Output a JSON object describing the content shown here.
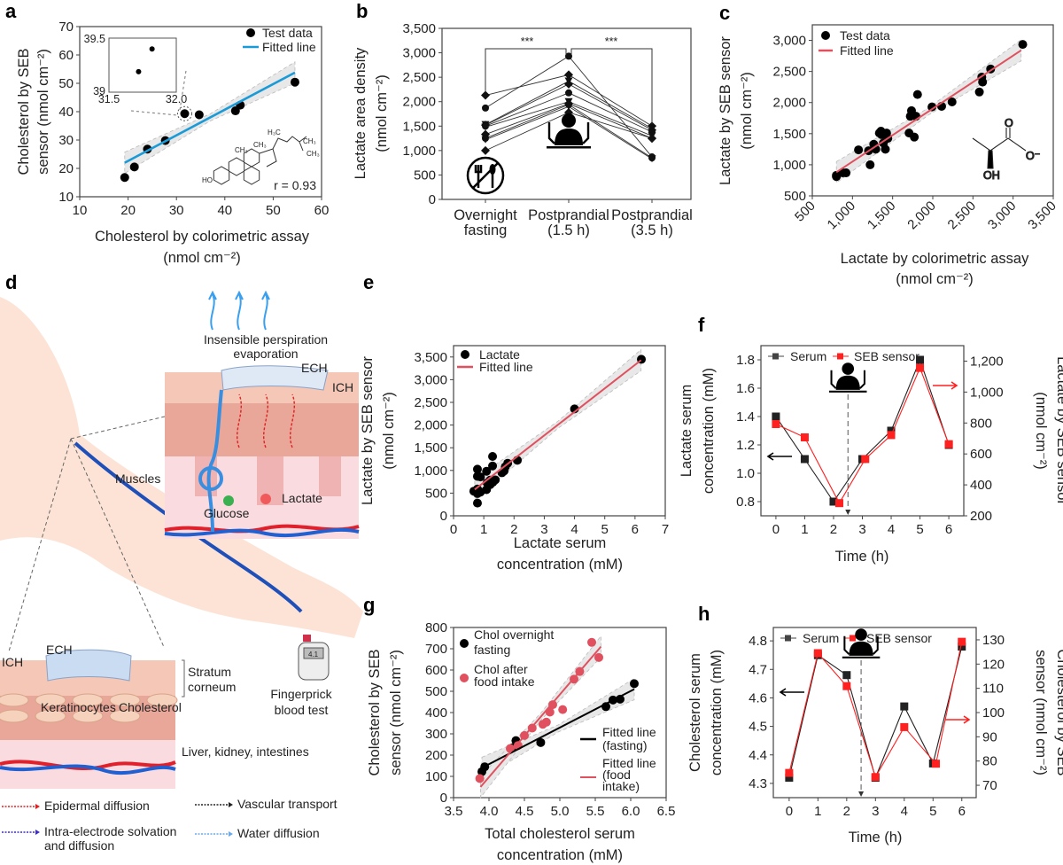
{
  "panel_letters": {
    "a": "a",
    "b": "b",
    "c": "c",
    "d": "d",
    "e": "e",
    "f": "f",
    "g": "g",
    "h": "h"
  },
  "colors": {
    "blue_fit": "#1a9ad6",
    "red_fit": "#e0505e",
    "sensor_red": "#ff2020",
    "serum_black": "#222222",
    "band": "#e6e6e6"
  },
  "chart_data": [
    {
      "panel": "a",
      "type": "scatter",
      "xlim": [
        10,
        60
      ],
      "ylim": [
        10,
        70
      ],
      "xticks": [
        10,
        20,
        30,
        40,
        50,
        60
      ],
      "xticklabels": [
        "10",
        "20",
        "30",
        "40",
        "50",
        "60"
      ],
      "yticks": [
        10,
        20,
        30,
        40,
        50,
        60,
        70
      ],
      "yticklabels": [
        "10",
        "20",
        "30",
        "40",
        "50",
        "60",
        "70"
      ],
      "xlabel": [
        "Cholesterol by colorimetric assay",
        "(nmol cm⁻²)"
      ],
      "ylabel": [
        "Cholesterol by SEB",
        "sensor (nmol cm⁻²)"
      ],
      "annotation": "r = 0.93",
      "series": [
        {
          "name": "Test data",
          "kind": "scatter",
          "color": "#000000",
          "x": [
            19.3,
            21.3,
            24.0,
            27.7,
            31.7,
            34.7,
            42.2,
            43.2,
            54.5
          ],
          "y": [
            16.8,
            20.5,
            26.8,
            29.8,
            39.3,
            38.9,
            40.3,
            42.3,
            50.4
          ]
        },
        {
          "name": "Fitted line",
          "kind": "fit",
          "color": "#1a9ad6",
          "x": [
            19.3,
            54.5
          ],
          "y": [
            22.0,
            53.8
          ]
        }
      ],
      "inset": {
        "xlim": [
          31.5,
          32.0
        ],
        "ylim": [
          39,
          39.5
        ],
        "xticklabels": [
          "31.5",
          "32.0"
        ],
        "yticklabels": [
          "39",
          "39.5"
        ],
        "x": [
          31.72,
          31.82
        ],
        "y": [
          39.19,
          39.4
        ]
      },
      "molecule": "cholesterol",
      "molecule_labels": [
        "H₃C",
        "CH₃",
        "CH₃",
        "CH₃",
        "CH₃",
        "HO"
      ]
    },
    {
      "panel": "b",
      "type": "line",
      "categories": [
        [
          "Overnight",
          "fasting"
        ],
        [
          "Postprandial",
          "(1.5 h)"
        ],
        [
          "Postprandial",
          "(3.5 h)"
        ]
      ],
      "ylim": [
        0,
        3500
      ],
      "yticks": [
        0,
        500,
        1000,
        1500,
        2000,
        2500,
        3000,
        3500
      ],
      "yticklabels": [
        "0",
        "500",
        "1,000",
        "1,500",
        "2,000",
        "2,500",
        "3,000",
        "3,500"
      ],
      "ylabel": [
        "Lactate area density",
        "(nmol cm⁻²)"
      ],
      "significance": [
        "***",
        "***"
      ],
      "subjects": [
        [
          2130,
          2550,
          1500
        ],
        [
          1870,
          2930,
          870
        ],
        [
          1530,
          2420,
          1450
        ],
        [
          1520,
          2360,
          1420
        ],
        [
          1500,
          2180,
          1380
        ],
        [
          1480,
          2000,
          1300
        ],
        [
          1330,
          1960,
          1250
        ],
        [
          1250,
          1940,
          850
        ],
        [
          1220,
          1900,
          830
        ],
        [
          1000,
          1780,
          1250
        ]
      ],
      "icons": [
        "no-food-icon",
        "person-eating-icon"
      ]
    },
    {
      "panel": "c",
      "type": "scatter",
      "xlim": [
        500,
        3500
      ],
      "ylim": [
        500,
        3250
      ],
      "xticks": [
        500,
        1000,
        1500,
        2000,
        2500,
        3000,
        3500
      ],
      "xticklabels": [
        "500",
        "1,000",
        "1,500",
        "2,000",
        "2,500",
        "3,000",
        "3,500"
      ],
      "yticks": [
        500,
        1000,
        1500,
        2000,
        2500,
        3000
      ],
      "yticklabels": [
        "500",
        "1,000",
        "1,500",
        "2,000",
        "2,500",
        "3,000"
      ],
      "xlabel": [
        "Lactate by colorimetric assay",
        "(nmol cm⁻²)"
      ],
      "ylabel": [
        "Lactate by SEB sensor",
        "(nmol cm⁻²)"
      ],
      "series": [
        {
          "name": "Test data",
          "kind": "scatter",
          "color": "#000000",
          "x": [
            800,
            800,
            880,
            920,
            1075,
            1200,
            1220,
            1265,
            1290,
            1335,
            1355,
            1360,
            1385,
            1410,
            1425,
            1440,
            1705,
            1720,
            1735,
            1770,
            1790,
            1810,
            1990,
            2110,
            2240,
            2580,
            2610,
            2620,
            2720,
            3120
          ],
          "y": [
            830,
            810,
            870,
            870,
            1240,
            1225,
            1000,
            1330,
            1250,
            1510,
            1540,
            1485,
            1350,
            1250,
            1510,
            1425,
            1510,
            1780,
            1870,
            1445,
            1780,
            2130,
            1930,
            1940,
            2010,
            2170,
            2410,
            2330,
            2540,
            2935
          ]
        },
        {
          "name": "Fitted line",
          "kind": "fit",
          "color": "#e0505e",
          "x": [
            800,
            3100
          ],
          "y": [
            880,
            2840
          ]
        }
      ],
      "molecule": "lactate",
      "molecule_labels": [
        "O",
        "O⁻",
        "OH"
      ]
    },
    {
      "panel": "e",
      "type": "scatter",
      "xlim": [
        0,
        7
      ],
      "ylim": [
        0,
        3750
      ],
      "xticks": [
        0,
        1,
        2,
        3,
        4,
        5,
        6,
        7
      ],
      "xticklabels": [
        "0",
        "1",
        "2",
        "3",
        "4",
        "5",
        "6",
        "7"
      ],
      "yticks": [
        0,
        500,
        1000,
        1500,
        2000,
        2500,
        3000,
        3500
      ],
      "yticklabels": [
        "0",
        "500",
        "1,000",
        "1,500",
        "2,000",
        "2,500",
        "3,000",
        "3,500"
      ],
      "xlabel": [
        "Lactate serum",
        "concentration (mM)"
      ],
      "ylabel": [
        "Lactate by SEB sensor",
        "(nmol cm⁻²)"
      ],
      "series": [
        {
          "name": "Lactate",
          "kind": "scatter",
          "color": "#000000",
          "x": [
            0.67,
            0.79,
            0.79,
            0.79,
            0.89,
            0.79,
            0.79,
            0.89,
            1.09,
            1.09,
            1.11,
            1.21,
            1.21,
            1.29,
            1.29,
            1.3,
            1.38,
            1.6,
            1.67,
            1.71,
            1.79,
            2.11,
            4.0,
            6.21
          ],
          "y": [
            543,
            590,
            490,
            281,
            523,
            1027,
            870,
            857,
            982,
            576,
            726,
            785,
            687,
            1309,
            1099,
            740,
            792,
            949,
            988,
            1080,
            1158,
            1224,
            2356,
            3449
          ]
        },
        {
          "name": "Fitted line",
          "kind": "fit",
          "color": "#e0505e",
          "x": [
            0.7,
            6.2
          ],
          "y": [
            580,
            3430
          ]
        }
      ]
    },
    {
      "panel": "f",
      "type": "line",
      "xlim": [
        -0.52,
        6.52
      ],
      "ylim": [
        0.7,
        1.9
      ],
      "y2lim": [
        200,
        1300
      ],
      "xticks": [
        0,
        1,
        2,
        3,
        4,
        5,
        6
      ],
      "xticklabels": [
        "0",
        "1",
        "2",
        "3",
        "4",
        "5",
        "6"
      ],
      "yticks": [
        0.8,
        1.0,
        1.2,
        1.4,
        1.6,
        1.8
      ],
      "yticklabels": [
        "0.8",
        "1.0",
        "1.2",
        "1.4",
        "1.6",
        "1.8"
      ],
      "y2ticks": [
        200,
        400,
        600,
        800,
        1000,
        1200
      ],
      "y2ticklabels": [
        "200",
        "400",
        "600",
        "800",
        "1,000",
        "1,200"
      ],
      "xlabel": [
        "Time (h)"
      ],
      "ylabel": [
        "Lactate serum",
        "concentration (mM)"
      ],
      "y2label": [
        "Lactate by SEB sensor",
        "(nmol cm⁻²)"
      ],
      "meal_time_h": 2.5,
      "series": [
        {
          "name": "Serum",
          "kind": "linemarker",
          "color": "#222222",
          "axis": "left",
          "x": [
            0,
            1,
            2,
            3,
            4,
            5,
            6
          ],
          "y": [
            1.4,
            1.1,
            0.8,
            1.1,
            1.3,
            1.8,
            1.2
          ]
        },
        {
          "name": "SEB sensor",
          "kind": "linemarker",
          "color": "#ff2020",
          "axis": "right",
          "x": [
            0,
            1,
            2.2,
            3.1,
            4,
            5,
            6
          ],
          "y": [
            793,
            707,
            282,
            567,
            722,
            1156,
            663
          ]
        }
      ]
    },
    {
      "panel": "g",
      "type": "scatter",
      "xlim": [
        3.5,
        6.5
      ],
      "ylim": [
        0,
        800
      ],
      "xticks": [
        3.5,
        4.0,
        4.5,
        5.0,
        5.5,
        6.0,
        6.5
      ],
      "xticklabels": [
        "3.5",
        "4.0",
        "4.5",
        "5.0",
        "5.5",
        "6.0",
        "6.5"
      ],
      "yticks": [
        0,
        100,
        200,
        300,
        400,
        500,
        600,
        700,
        800
      ],
      "yticklabels": [
        "0",
        "100",
        "200",
        "300",
        "400",
        "500",
        "600",
        "700",
        "800"
      ],
      "xlabel": [
        "Total cholesterol serum",
        "concentration (mM)"
      ],
      "ylabel": [
        "Cholesterol by SEB",
        "sensor (nmol cm⁻²)"
      ],
      "series": [
        {
          "name": [
            "Chol overnight",
            "fasting"
          ],
          "kind": "scatter",
          "color": "#000000",
          "x": [
            3.9,
            3.94,
            4.33,
            4.38,
            4.73,
            5.65,
            5.75,
            5.85,
            6.05
          ],
          "y": [
            122,
            145,
            234,
            268,
            259,
            428,
            459,
            463,
            536
          ]
        },
        {
          "name": [
            "Chol after",
            "food intake"
          ],
          "kind": "scatter",
          "color": "#e0505e",
          "x": [
            3.87,
            4.3,
            4.41,
            4.5,
            4.61,
            4.76,
            4.81,
            4.86,
            4.9,
            5.04,
            5.2,
            5.28,
            5.45,
            5.55
          ],
          "y": [
            90,
            231,
            245,
            292,
            327,
            345,
            355,
            402,
            437,
            414,
            557,
            593,
            730,
            659
          ]
        },
        {
          "name": [
            "Fitted line",
            "(fasting)"
          ],
          "kind": "fit",
          "color": "#000000",
          "x": [
            3.9,
            6.05
          ],
          "y": [
            140,
            510
          ]
        },
        {
          "name": [
            "Fitted line",
            "(food",
            "intake)"
          ],
          "kind": "fit",
          "color": "#e0505e",
          "x": [
            3.88,
            5.58
          ],
          "y": [
            50,
            710
          ]
        }
      ]
    },
    {
      "panel": "h",
      "type": "line",
      "xlim": [
        -0.55,
        6.5
      ],
      "ylim": [
        4.25,
        4.847
      ],
      "y2lim": [
        64.9,
        135.1
      ],
      "xticks": [
        0,
        1,
        2,
        3,
        4,
        5,
        6
      ],
      "xticklabels": [
        "0",
        "1",
        "2",
        "3",
        "4",
        "5",
        "6"
      ],
      "yticks": [
        4.3,
        4.4,
        4.5,
        4.6,
        4.7,
        4.8
      ],
      "yticklabels": [
        "4.3",
        "4.4",
        "4.5",
        "4.6",
        "4.7",
        "4.8"
      ],
      "y2ticks": [
        70,
        80,
        90,
        100,
        110,
        120,
        130
      ],
      "y2ticklabels": [
        "70",
        "80",
        "90",
        "100",
        "110",
        "120",
        "130"
      ],
      "xlabel": [
        "Time (h)"
      ],
      "ylabel": [
        "Cholesterol serum",
        "concentration (mM)"
      ],
      "y2label": [
        "Cholesterol by SEB",
        "sensor (nmol cm⁻²)"
      ],
      "meal_time_h": 2.5,
      "series": [
        {
          "name": "Serum",
          "kind": "linemarker",
          "color": "#222222",
          "axis": "left",
          "x": [
            0,
            1,
            2,
            3,
            4,
            5,
            6
          ],
          "y": [
            4.32,
            4.75,
            4.68,
            4.32,
            4.57,
            4.37,
            4.78
          ]
        },
        {
          "name": "SEB sensor",
          "kind": "linemarker",
          "color": "#ff2020",
          "axis": "right",
          "x": [
            0,
            1,
            2,
            3,
            4,
            5.1,
            6
          ],
          "y": [
            75.1,
            124.5,
            110.9,
            73.4,
            94.0,
            78.9,
            129.2
          ]
        }
      ]
    }
  ],
  "diagram_d": {
    "labels": {
      "perspiration": [
        "Insensible perspiration",
        "evaporation"
      ],
      "ech_top": "ECH",
      "ich_top": "ICH",
      "muscles": "Muscles",
      "lactate": "Lactate",
      "glucose": "Glucose",
      "ich_bottom": "ICH",
      "ech_bottom": "ECH",
      "stratum": [
        "Stratum",
        "corneum"
      ],
      "keratinocytes": "Keratinocytes",
      "cholesterol": "Cholesterol",
      "fingerprick": [
        "Fingerprick",
        "blood test"
      ],
      "organs": "Liver, kidney, intestines",
      "glucometer_reading": "4.1"
    },
    "legend": [
      {
        "label": [
          "Epidermal diffusion"
        ],
        "color": "#e02020"
      },
      {
        "label": [
          "Vascular transport"
        ],
        "color": "#222222"
      },
      {
        "label": [
          "Intra-electrode solvation",
          "and diffusion"
        ],
        "color": "#3a2fc0"
      },
      {
        "label": [
          "Water diffusion"
        ],
        "color": "#6aa8ee"
      }
    ]
  }
}
